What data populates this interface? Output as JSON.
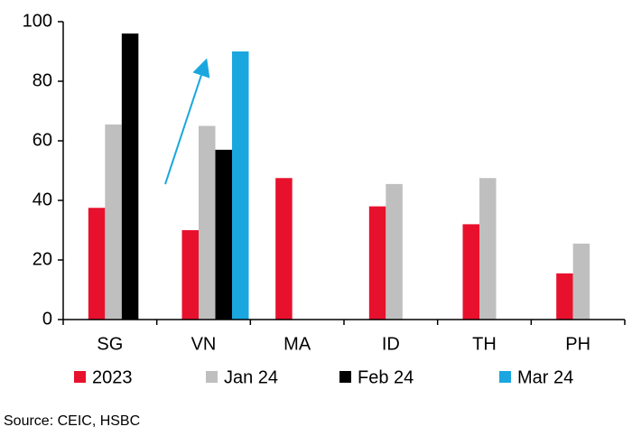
{
  "chart_data": {
    "type": "bar",
    "categories": [
      "SG",
      "VN",
      "MA",
      "ID",
      "TH",
      "PH"
    ],
    "series": [
      {
        "name": "2023",
        "color": "#e8112d",
        "values": [
          37.5,
          30,
          47.5,
          38,
          32,
          15.5
        ]
      },
      {
        "name": "Jan 24",
        "color": "#bfbfbf",
        "values": [
          65.5,
          65,
          null,
          45.5,
          47.5,
          25.5
        ]
      },
      {
        "name": "Feb 24",
        "color": "#000000",
        "values": [
          96,
          57,
          null,
          null,
          null,
          null
        ]
      },
      {
        "name": "Mar 24",
        "color": "#1aa7e0",
        "values": [
          null,
          90,
          null,
          null,
          null,
          null
        ]
      }
    ],
    "ylim": [
      0,
      100
    ],
    "yticks": [
      0,
      20,
      40,
      60,
      80,
      100
    ],
    "source": "Source: CEIC, HSBC"
  }
}
